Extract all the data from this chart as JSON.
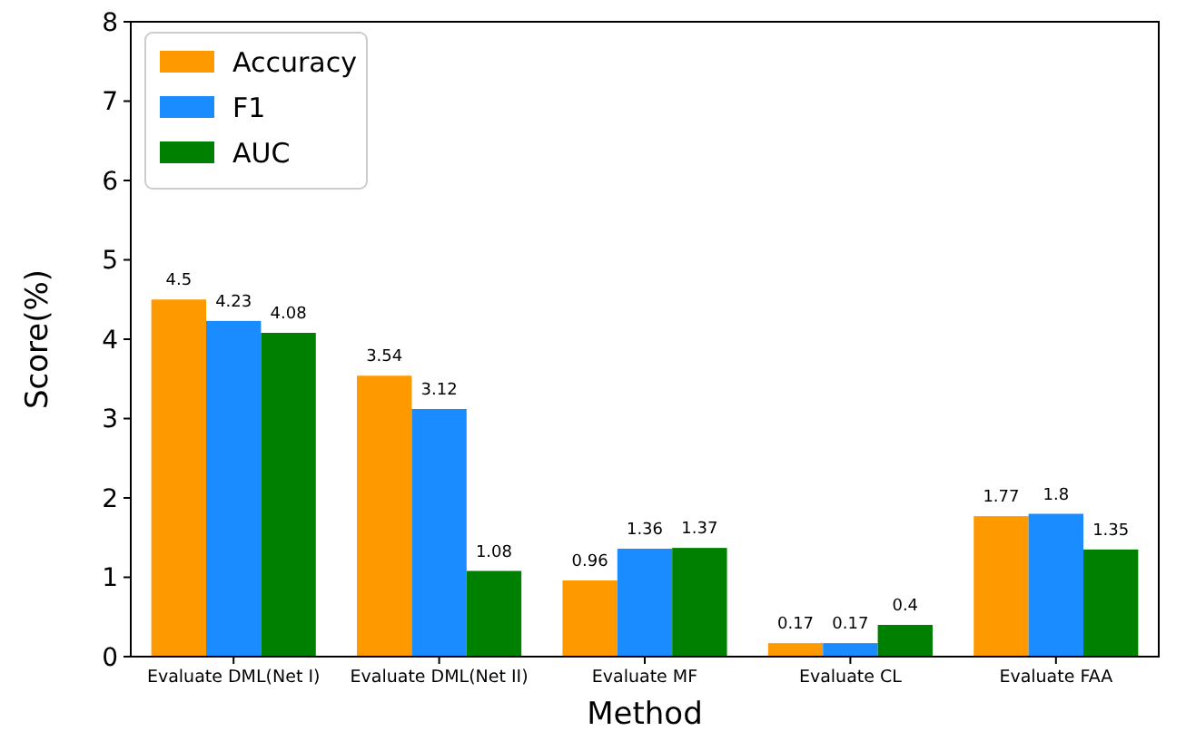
{
  "chart_data": {
    "type": "bar",
    "xlabel": "Method",
    "ylabel": "Score(%)",
    "categories": [
      "Evaluate DML(Net I)",
      "Evaluate DML(Net II)",
      "Evaluate MF",
      "Evaluate CL",
      "Evaluate FAA"
    ],
    "series": [
      {
        "name": "Accuracy",
        "color": "#ff9900",
        "values": [
          4.5,
          3.54,
          0.96,
          0.17,
          1.77
        ]
      },
      {
        "name": "F1",
        "color": "#1a8cff",
        "values": [
          4.23,
          3.12,
          1.36,
          0.17,
          1.8
        ]
      },
      {
        "name": "AUC",
        "color": "#008000",
        "values": [
          4.08,
          1.08,
          1.37,
          0.4,
          1.35
        ]
      }
    ],
    "ylim": [
      0,
      8
    ],
    "yticks": [
      0,
      1,
      2,
      3,
      4,
      5,
      6,
      7,
      8
    ],
    "data_labels": true,
    "legend": "top left",
    "grid": false
  }
}
